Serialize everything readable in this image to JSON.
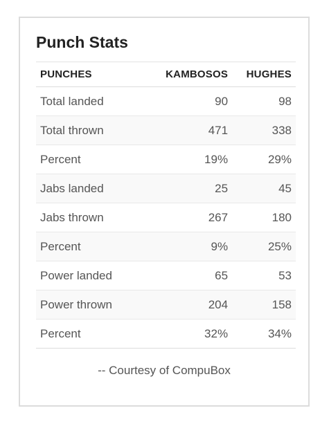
{
  "card": {
    "title": "Punch Stats",
    "headers": [
      "PUNCHES",
      "KAMBOSOS",
      "HUGHES"
    ],
    "rows": [
      {
        "label": "Total landed",
        "kambosos": "90",
        "hughes": "98"
      },
      {
        "label": "Total thrown",
        "kambosos": "471",
        "hughes": "338"
      },
      {
        "label": "Percent",
        "kambosos": "19%",
        "hughes": "29%"
      },
      {
        "label": "Jabs landed",
        "kambosos": "25",
        "hughes": "45"
      },
      {
        "label": "Jabs thrown",
        "kambosos": "267",
        "hughes": "180"
      },
      {
        "label": "Percent",
        "kambosos": "9%",
        "hughes": "25%"
      },
      {
        "label": "Power landed",
        "kambosos": "65",
        "hughes": "53"
      },
      {
        "label": "Power thrown",
        "kambosos": "204",
        "hughes": "158"
      },
      {
        "label": "Percent",
        "kambosos": "32%",
        "hughes": "34%"
      }
    ],
    "credit": "-- Courtesy of CompuBox"
  },
  "colors": {
    "border": "#dcdcdc",
    "title": "#222222",
    "text": "#555555",
    "stripe": "#f9f9f9"
  }
}
